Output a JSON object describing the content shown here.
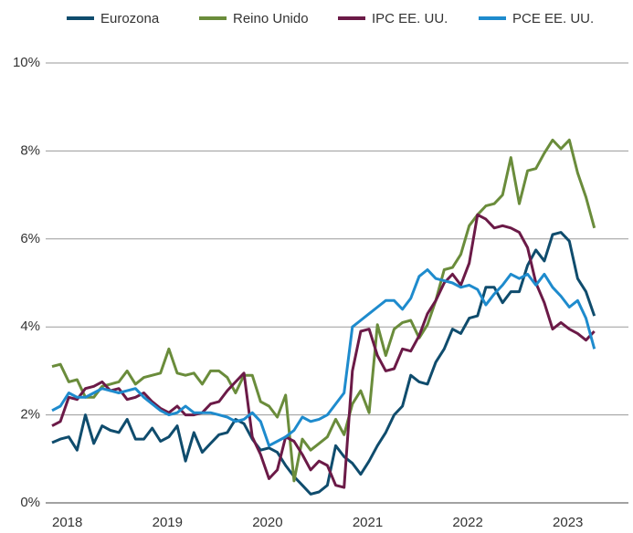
{
  "chart_data": {
    "type": "line",
    "x": [
      2018.0,
      2018.083,
      2018.167,
      2018.25,
      2018.333,
      2018.417,
      2018.5,
      2018.583,
      2018.667,
      2018.75,
      2018.833,
      2018.917,
      2019.0,
      2019.083,
      2019.167,
      2019.25,
      2019.333,
      2019.417,
      2019.5,
      2019.583,
      2019.667,
      2019.75,
      2019.833,
      2019.917,
      2020.0,
      2020.083,
      2020.167,
      2020.25,
      2020.333,
      2020.417,
      2020.5,
      2020.583,
      2020.667,
      2020.75,
      2020.833,
      2020.917,
      2021.0,
      2021.083,
      2021.167,
      2021.25,
      2021.333,
      2021.417,
      2021.5,
      2021.583,
      2021.667,
      2021.75,
      2021.833,
      2021.917,
      2022.0,
      2022.083,
      2022.167,
      2022.25,
      2022.333,
      2022.417,
      2022.5,
      2022.583,
      2022.667,
      2022.75,
      2022.833,
      2022.917,
      2023.0,
      2023.083,
      2023.167,
      2023.25,
      2023.333,
      2023.417
    ],
    "series": [
      {
        "name": "Eurozona",
        "color": "#0f4c6d",
        "values": [
          1.37,
          1.45,
          1.5,
          1.2,
          2.0,
          1.35,
          1.75,
          1.65,
          1.6,
          1.9,
          1.45,
          1.45,
          1.7,
          1.4,
          1.5,
          1.75,
          0.95,
          1.6,
          1.15,
          1.35,
          1.55,
          1.6,
          1.9,
          1.8,
          1.45,
          1.2,
          1.25,
          1.15,
          0.85,
          0.6,
          0.4,
          0.2,
          0.25,
          0.4,
          1.3,
          1.05,
          0.9,
          0.65,
          0.95,
          1.3,
          1.6,
          2.0,
          2.2,
          2.9,
          2.75,
          2.7,
          3.2,
          3.5,
          3.95,
          3.85,
          4.2,
          4.25,
          4.9,
          4.9,
          4.55,
          4.8,
          4.8,
          5.4,
          5.75,
          5.5,
          6.1,
          6.15,
          5.95,
          5.1,
          4.8,
          4.25
        ]
      },
      {
        "name": "Reino Unido",
        "color": "#6a8c3b",
        "values": [
          3.1,
          3.15,
          2.75,
          2.8,
          2.4,
          2.4,
          2.65,
          2.7,
          2.75,
          3.0,
          2.7,
          2.85,
          2.9,
          2.95,
          3.5,
          2.95,
          2.9,
          2.95,
          2.7,
          3.0,
          3.0,
          2.85,
          2.5,
          2.9,
          2.9,
          2.3,
          2.2,
          1.95,
          2.45,
          0.5,
          1.45,
          1.2,
          1.35,
          1.5,
          1.9,
          1.55,
          2.25,
          2.55,
          2.05,
          4.05,
          3.35,
          3.95,
          4.1,
          4.15,
          3.75,
          4.05,
          4.6,
          5.3,
          5.35,
          5.65,
          6.3,
          6.55,
          6.75,
          6.8,
          7.0,
          7.85,
          6.8,
          7.55,
          7.6,
          7.95,
          8.25,
          8.05,
          8.25,
          7.5,
          6.95,
          6.25
        ]
      },
      {
        "name": "IPC EE. UU.",
        "color": "#6b1a47",
        "values": [
          1.75,
          1.85,
          2.4,
          2.35,
          2.6,
          2.65,
          2.75,
          2.55,
          2.6,
          2.35,
          2.4,
          2.5,
          2.3,
          2.15,
          2.05,
          2.2,
          2.0,
          2.0,
          2.05,
          2.25,
          2.3,
          2.55,
          2.75,
          2.95,
          1.5,
          1.1,
          0.55,
          0.75,
          1.5,
          1.4,
          1.1,
          0.75,
          0.95,
          0.85,
          0.4,
          0.35,
          3.0,
          3.9,
          3.95,
          3.35,
          3.0,
          3.05,
          3.5,
          3.45,
          3.8,
          4.3,
          4.6,
          5.0,
          5.2,
          4.95,
          5.45,
          6.55,
          6.45,
          6.25,
          6.3,
          6.25,
          6.15,
          5.8,
          5.0,
          4.55,
          3.95,
          4.1,
          3.95,
          3.85,
          3.7,
          3.9
        ]
      },
      {
        "name": "PCE EE. UU.",
        "color": "#1e8bcd",
        "values": [
          2.1,
          2.2,
          2.5,
          2.4,
          2.4,
          2.5,
          2.6,
          2.55,
          2.5,
          2.55,
          2.6,
          2.4,
          2.25,
          2.1,
          2.0,
          2.05,
          2.2,
          2.05,
          2.05,
          2.05,
          2.0,
          1.95,
          1.85,
          1.9,
          2.05,
          1.85,
          1.3,
          1.4,
          1.5,
          1.65,
          1.95,
          1.85,
          1.9,
          2.0,
          2.25,
          2.5,
          4.0,
          4.15,
          4.3,
          4.45,
          4.6,
          4.6,
          4.4,
          4.65,
          5.15,
          5.3,
          5.1,
          5.05,
          5.0,
          4.9,
          4.95,
          4.85,
          4.5,
          4.75,
          4.95,
          5.2,
          5.1,
          5.2,
          4.95,
          5.2,
          4.9,
          4.7,
          4.45,
          4.6,
          4.2,
          3.5
        ]
      }
    ],
    "xlim": [
      2017.936,
      2023.757
    ],
    "xticks": [
      2018,
      2019,
      2020,
      2021,
      2022,
      2023
    ],
    "ylim": [
      0,
      10
    ],
    "yticks": [
      {
        "value": 0,
        "label": "0%"
      },
      {
        "value": 2,
        "label": "2%"
      },
      {
        "value": 4,
        "label": "4%"
      },
      {
        "value": 6,
        "label": "6%"
      },
      {
        "value": 8,
        "label": "8%"
      },
      {
        "value": 10,
        "label": "10%"
      }
    ],
    "grid": true,
    "legend": "top"
  }
}
